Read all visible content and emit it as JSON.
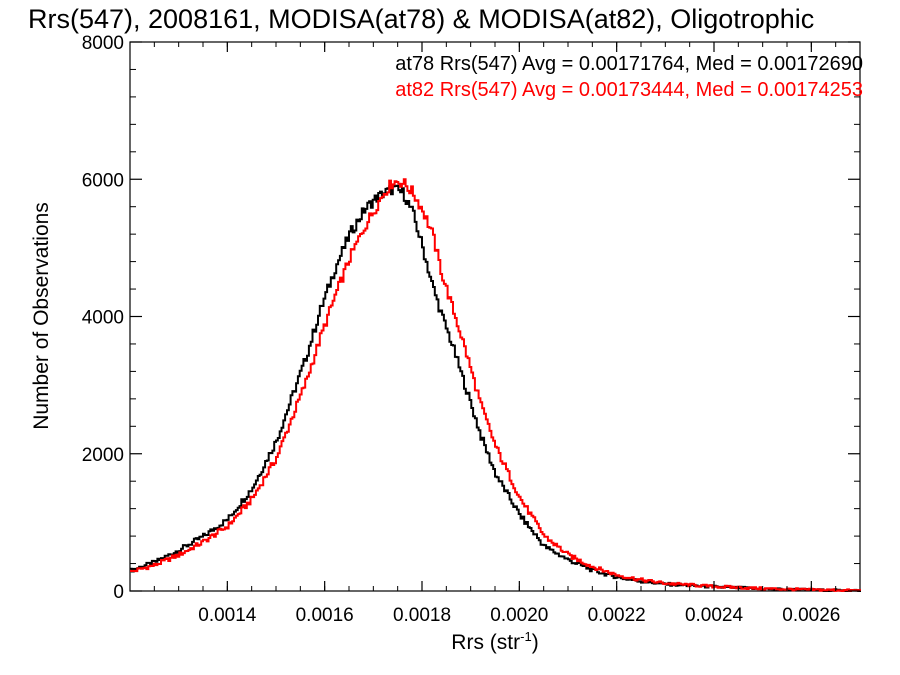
{
  "chart_data": {
    "type": "line",
    "step": true,
    "title": "Rrs(547), 2008161, MODISA(at78) & MODISA(at82), Oligotrophic",
    "xlabel": "Rrs (str",
    "xlabel_sup": "-1",
    "xlabel_close": ")",
    "ylabel": "Number of Observations",
    "xlim": [
      0.0012,
      0.0027
    ],
    "ylim": [
      0,
      8000
    ],
    "grid": false,
    "x_ticks": [
      {
        "value": 0.0014,
        "label": "0.0014"
      },
      {
        "value": 0.0016,
        "label": "0.0016"
      },
      {
        "value": 0.0018,
        "label": "0.0018"
      },
      {
        "value": 0.002,
        "label": "0.0020"
      },
      {
        "value": 0.0022,
        "label": "0.0022"
      },
      {
        "value": 0.0024,
        "label": "0.0024"
      },
      {
        "value": 0.0026,
        "label": "0.0026"
      }
    ],
    "y_ticks": [
      {
        "value": 0,
        "label": "0"
      },
      {
        "value": 2000,
        "label": "2000"
      },
      {
        "value": 4000,
        "label": "4000"
      },
      {
        "value": 6000,
        "label": "6000"
      },
      {
        "value": 8000,
        "label": "8000"
      }
    ],
    "annotations": [
      {
        "text": "at78 Rrs(547) Avg = 0.00171764, Med = 0.00172690",
        "color": "#000000",
        "position": "top-right"
      },
      {
        "text": "at82 Rrs(547) Avg = 0.00173444, Med = 0.00174253",
        "color": "#ff0000",
        "position": "top-right"
      }
    ],
    "series": [
      {
        "color": "#000000",
        "x": [
          0.0012,
          0.00125,
          0.0013,
          0.00135,
          0.0014,
          0.00145,
          0.0015,
          0.00153,
          0.00156,
          0.00159,
          0.00162,
          0.00165,
          0.00168,
          0.0017,
          0.00172,
          0.00174,
          0.00176,
          0.00178,
          0.0018,
          0.00182,
          0.00184,
          0.00186,
          0.00188,
          0.0019,
          0.00192,
          0.00195,
          0.002,
          0.00205,
          0.0021,
          0.00215,
          0.0022,
          0.00225,
          0.0023,
          0.0024,
          0.0025,
          0.0026,
          0.0027
        ],
        "y": [
          300,
          420,
          600,
          800,
          1050,
          1500,
          2200,
          2800,
          3400,
          4100,
          4700,
          5200,
          5550,
          5700,
          5800,
          5860,
          5800,
          5500,
          5000,
          4450,
          4000,
          3600,
          3150,
          2700,
          2250,
          1700,
          1100,
          650,
          450,
          300,
          200,
          140,
          100,
          60,
          30,
          15,
          5
        ]
      },
      {
        "color": "#ff0000",
        "x": [
          0.0012,
          0.00125,
          0.0013,
          0.00135,
          0.0014,
          0.00145,
          0.0015,
          0.00153,
          0.00156,
          0.00159,
          0.00162,
          0.00165,
          0.00168,
          0.0017,
          0.00172,
          0.00174,
          0.00176,
          0.00178,
          0.0018,
          0.00182,
          0.00184,
          0.00186,
          0.00188,
          0.0019,
          0.00192,
          0.00195,
          0.002,
          0.00205,
          0.0021,
          0.00215,
          0.0022,
          0.00225,
          0.0023,
          0.0024,
          0.0025,
          0.0026,
          0.0027
        ],
        "y": [
          280,
          380,
          530,
          720,
          950,
          1350,
          1950,
          2500,
          3050,
          3700,
          4300,
          4850,
          5300,
          5550,
          5800,
          5970,
          5950,
          5800,
          5550,
          5200,
          4600,
          4150,
          3700,
          3200,
          2700,
          2100,
          1350,
          800,
          520,
          350,
          230,
          160,
          110,
          65,
          35,
          18,
          6
        ]
      }
    ]
  }
}
